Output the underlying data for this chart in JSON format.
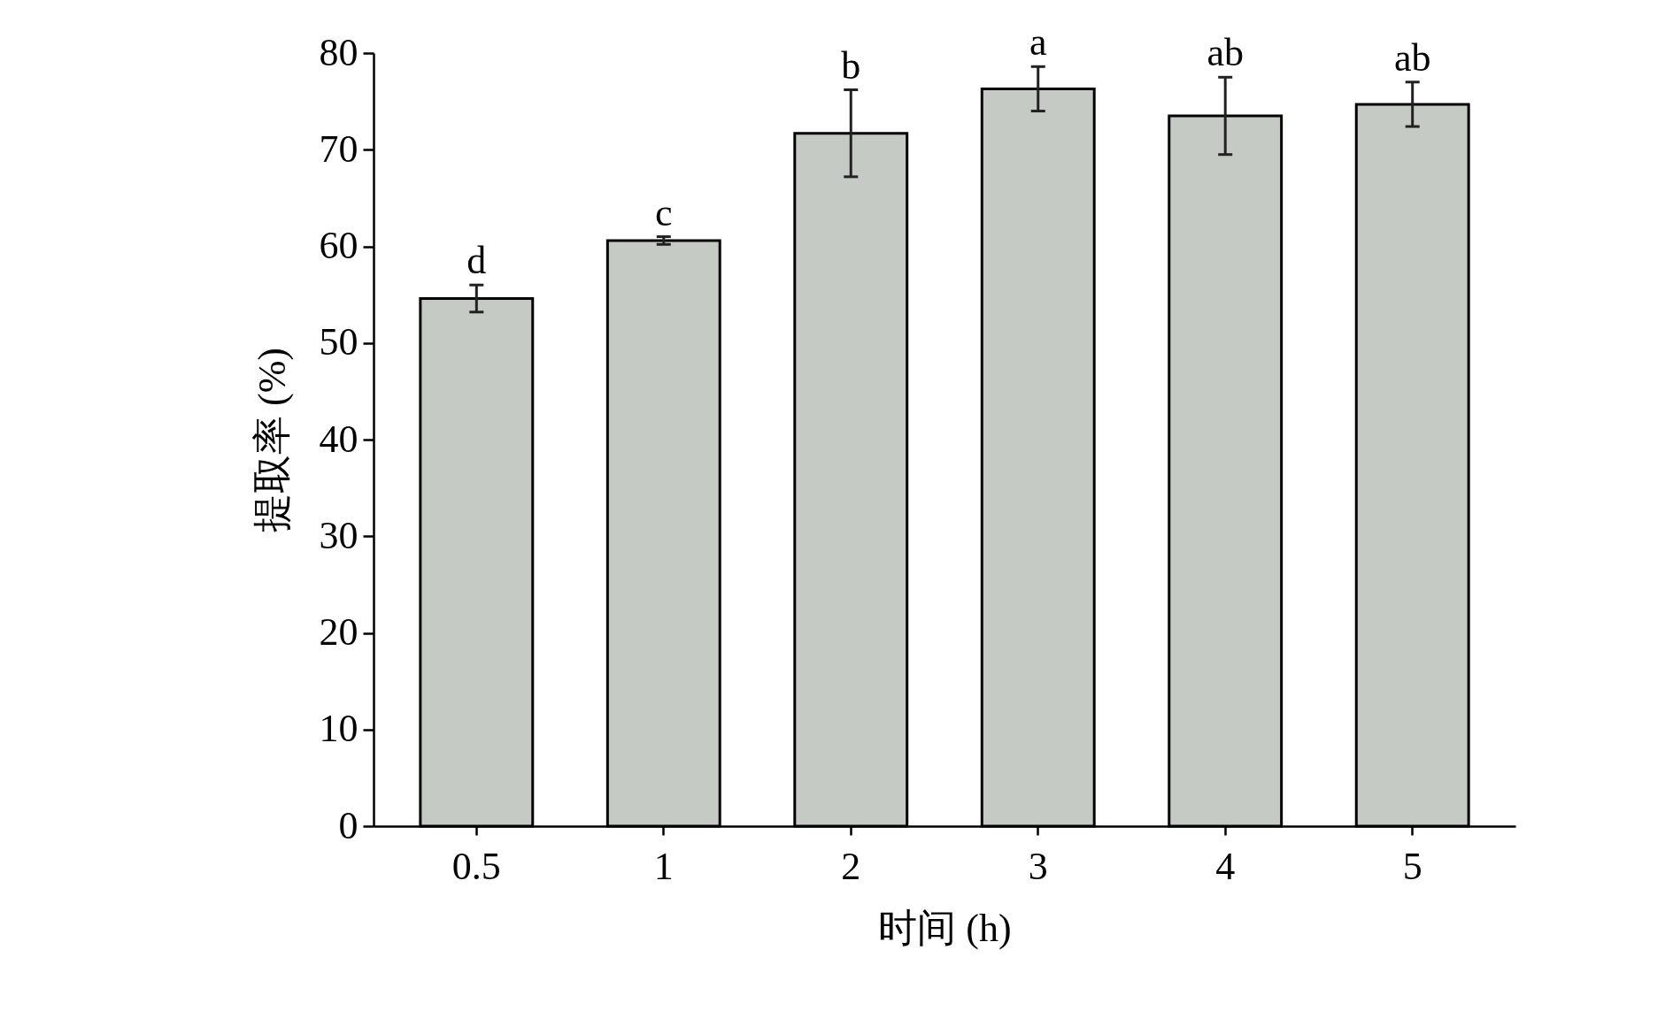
{
  "chart_data": {
    "type": "bar",
    "xlabel": "时间 (h)",
    "ylabel": "提取率 (%)",
    "categories": [
      "0.5",
      "1",
      "2",
      "3",
      "4",
      "5"
    ],
    "series": [
      {
        "color": "#c5cac5",
        "values": [
          54.6,
          60.6,
          71.7,
          76.3,
          73.5,
          74.7
        ],
        "errors": [
          1.4,
          0.4,
          4.5,
          2.3,
          4.0,
          2.3
        ]
      }
    ],
    "ylim": [
      0,
      80
    ],
    "yticks": [
      0,
      10,
      20,
      30,
      40,
      50,
      60,
      70,
      80
    ],
    "grid": false,
    "annotations": [
      {
        "text": "d",
        "x": "0.5",
        "y": 56.0
      },
      {
        "text": "c",
        "x": "1",
        "y": 61.0
      },
      {
        "text": "b",
        "x": "2",
        "y": 76.2
      },
      {
        "text": "a",
        "x": "3",
        "y": 78.6
      },
      {
        "text": "ab",
        "x": "4",
        "y": 77.5
      },
      {
        "text": "ab",
        "x": "5",
        "y": 77.0
      }
    ]
  }
}
